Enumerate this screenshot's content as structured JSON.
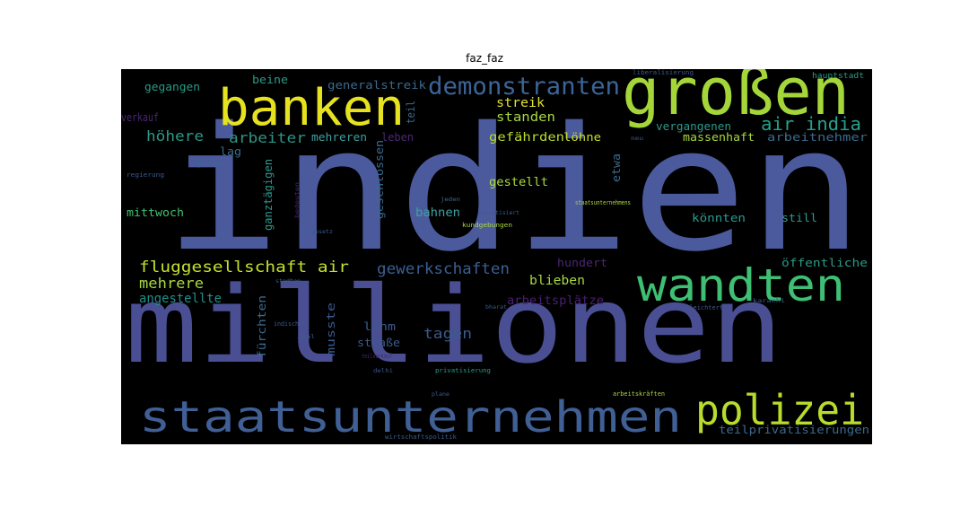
{
  "title": "faz_faz",
  "chart_data": {
    "type": "wordcloud",
    "title": "faz_faz",
    "background": "#000000",
    "words": [
      {
        "text": "indien",
        "color": "#4b5a9c"
      },
      {
        "text": "millionen",
        "color": "#4a4f93"
      },
      {
        "text": "banken",
        "color": "#e6e21f"
      },
      {
        "text": "großen",
        "color": "#a4d63a"
      },
      {
        "text": "wandten",
        "color": "#3fbf73"
      },
      {
        "text": "staatsunternehmen",
        "color": "#3f5f95"
      },
      {
        "text": "polizei",
        "color": "#b8dc2c"
      },
      {
        "text": "demonstranten",
        "color": "#3b6496"
      },
      {
        "text": "air india",
        "color": "#27a08a"
      },
      {
        "text": "fluggesellschaft air",
        "color": "#c4e02c"
      },
      {
        "text": "gewerkschaften",
        "color": "#3b5f92"
      },
      {
        "text": "höhere",
        "color": "#2a9a87"
      },
      {
        "text": "arbeiter",
        "color": "#2e9486"
      },
      {
        "text": "mehrere",
        "color": "#a8d840"
      },
      {
        "text": "angestellte",
        "color": "#1f8e88"
      },
      {
        "text": "tagen",
        "color": "#3b5a8e"
      },
      {
        "text": "blieben",
        "color": "#a8d840"
      },
      {
        "text": "streik",
        "color": "#e0e030"
      },
      {
        "text": "standen",
        "color": "#a8d840"
      },
      {
        "text": "gefährden",
        "color": "#b8dc2c"
      },
      {
        "text": "löhne",
        "color": "#c8e020"
      },
      {
        "text": "gestellt",
        "color": "#a8d840"
      },
      {
        "text": "bahnen",
        "color": "#3fa0a0"
      },
      {
        "text": "könnten",
        "color": "#2a9a90"
      },
      {
        "text": "still",
        "color": "#2a9a90"
      },
      {
        "text": "mittwoch",
        "color": "#3fc070"
      },
      {
        "text": "arbeitsplätze",
        "color": "#4a1f72"
      },
      {
        "text": "lahm",
        "color": "#3b5a8e"
      },
      {
        "text": "straße",
        "color": "#3b5a8e"
      },
      {
        "text": "fürchten",
        "color": "#3b6a8e"
      },
      {
        "text": "musste",
        "color": "#3b5a8e"
      },
      {
        "text": "mehreren",
        "color": "#3fa0a0"
      },
      {
        "text": "leben",
        "color": "#4a2872"
      },
      {
        "text": "lag",
        "color": "#3b6a8e"
      },
      {
        "text": "ganztägigen",
        "color": "#2a9a90"
      },
      {
        "text": "geschlossen",
        "color": "#3b6a8e"
      },
      {
        "text": "etwa",
        "color": "#3b6a8e"
      },
      {
        "text": "verkauf",
        "color": "#4a2872"
      },
      {
        "text": "teil",
        "color": "#3b6a8e"
      },
      {
        "text": "gegangen",
        "color": "#2a9a87"
      },
      {
        "text": "beine",
        "color": "#2a9a87"
      },
      {
        "text": "generalstreik",
        "color": "#3b6a8e"
      },
      {
        "text": "hundert",
        "color": "#4a2872"
      },
      {
        "text": "öffentliche",
        "color": "#2a9a87"
      },
      {
        "text": "teilprivatisierungen",
        "color": "#3b6a8e"
      },
      {
        "text": "massenhaft",
        "color": "#a8d840"
      },
      {
        "text": "vergangenen",
        "color": "#2a9a87"
      },
      {
        "text": "arbeitnehmer",
        "color": "#3b6a8e"
      },
      {
        "text": "hauptstadt",
        "color": "#2a9a87"
      },
      {
        "text": "liberalisierung",
        "color": "#3b5a8e"
      },
      {
        "text": "regierung",
        "color": "#3b5a8e"
      },
      {
        "text": "gehen",
        "color": "#3b6a8e"
      },
      {
        "text": "neu",
        "color": "#3b5a8e"
      },
      {
        "text": "privatisiert",
        "color": "#3b5a8e"
      },
      {
        "text": "kundgebungen",
        "color": "#a8d840"
      },
      {
        "text": "jeden",
        "color": "#3b6a8e"
      },
      {
        "text": "staatsunternehmens",
        "color": "#a8d840"
      },
      {
        "text": "bedeuten",
        "color": "#4a2872"
      },
      {
        "text": "gesetz",
        "color": "#3b5a8e"
      },
      {
        "text": "stadten",
        "color": "#3b5a8e"
      },
      {
        "text": "indischen",
        "color": "#3b5a8e"
      },
      {
        "text": "zahl",
        "color": "#3b5a8e"
      },
      {
        "text": "teilverkauf",
        "color": "#4a2872"
      },
      {
        "text": "delhi",
        "color": "#3b5a8e"
      },
      {
        "text": "privatisierung",
        "color": "#2a9a87"
      },
      {
        "text": "bharat",
        "color": "#3b5a8e"
      },
      {
        "text": "erleichtert",
        "color": "#3b5a8e"
      },
      {
        "text": "karachi",
        "color": "#3b5a8e"
      },
      {
        "text": "plane",
        "color": "#3b5a8e"
      },
      {
        "text": "arbeitskräften",
        "color": "#a8d840"
      },
      {
        "text": "wirtschaftspolitik",
        "color": "#3b5a8e"
      }
    ]
  }
}
